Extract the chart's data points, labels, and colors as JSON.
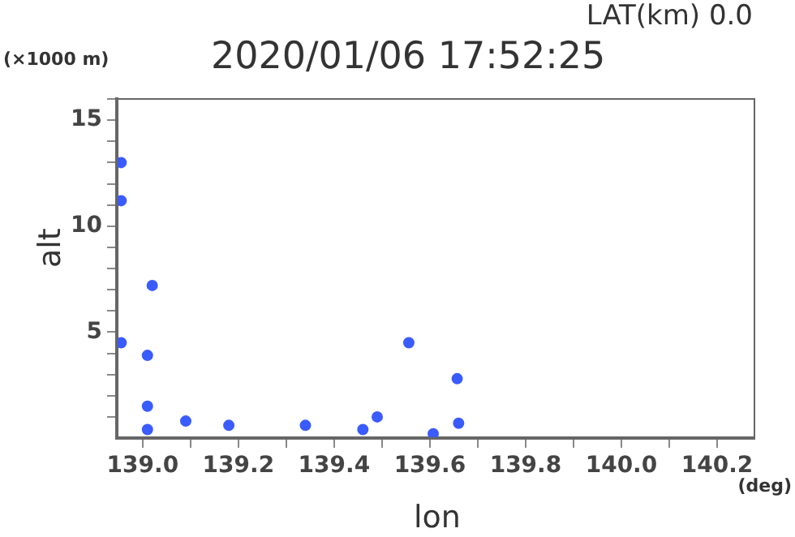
{
  "chart_data": {
    "type": "scatter",
    "title": "2020/01/06 17:52:25",
    "subtitle": "LAT(km) 0.0",
    "xlabel": "lon",
    "ylabel": "alt",
    "annotations": [
      "(×1000 m)",
      "(deg)"
    ],
    "xlim": [
      138.946,
      140.278
    ],
    "xticks": [
      {
        "value": 139.0,
        "label": "139.0"
      },
      {
        "value": 139.1,
        "label": null
      },
      {
        "value": 139.2,
        "label": "139.2"
      },
      {
        "value": 139.3,
        "label": null
      },
      {
        "value": 139.4,
        "label": "139.4"
      },
      {
        "value": 139.5,
        "label": null
      },
      {
        "value": 139.6,
        "label": "139.6"
      },
      {
        "value": 139.7,
        "label": null
      },
      {
        "value": 139.8,
        "label": "139.8"
      },
      {
        "value": 139.9,
        "label": null
      },
      {
        "value": 140.0,
        "label": "140.0"
      },
      {
        "value": 140.1,
        "label": null
      },
      {
        "value": 140.2,
        "label": "140.2"
      }
    ],
    "ylim": [
      0,
      16
    ],
    "yticks": [
      {
        "value": 1,
        "label": null
      },
      {
        "value": 2,
        "label": null
      },
      {
        "value": 3,
        "label": null
      },
      {
        "value": 4,
        "label": null
      },
      5,
      {
        "value": 6,
        "label": null
      },
      {
        "value": 7,
        "label": null
      },
      {
        "value": 8,
        "label": null
      },
      {
        "value": 9,
        "label": null
      },
      10,
      {
        "value": 11,
        "label": null
      },
      {
        "value": 12,
        "label": null
      },
      {
        "value": 13,
        "label": null
      },
      {
        "value": 14,
        "label": null
      },
      15,
      {
        "value": 16,
        "label": null
      }
    ],
    "grid": false,
    "marker": "circle",
    "series": [
      {
        "color": "#3a5cff",
        "x": [
          138.955,
          138.955,
          138.955,
          139.02,
          139.01,
          139.01,
          139.01,
          139.09,
          139.18,
          139.34,
          139.46,
          139.49,
          139.556,
          139.607,
          139.657,
          139.66
        ],
        "values": [
          13.0,
          11.2,
          4.5,
          7.2,
          3.9,
          1.5,
          0.4,
          0.8,
          0.6,
          0.6,
          0.4,
          1.0,
          4.5,
          0.2,
          2.8,
          0.7
        ]
      }
    ]
  }
}
